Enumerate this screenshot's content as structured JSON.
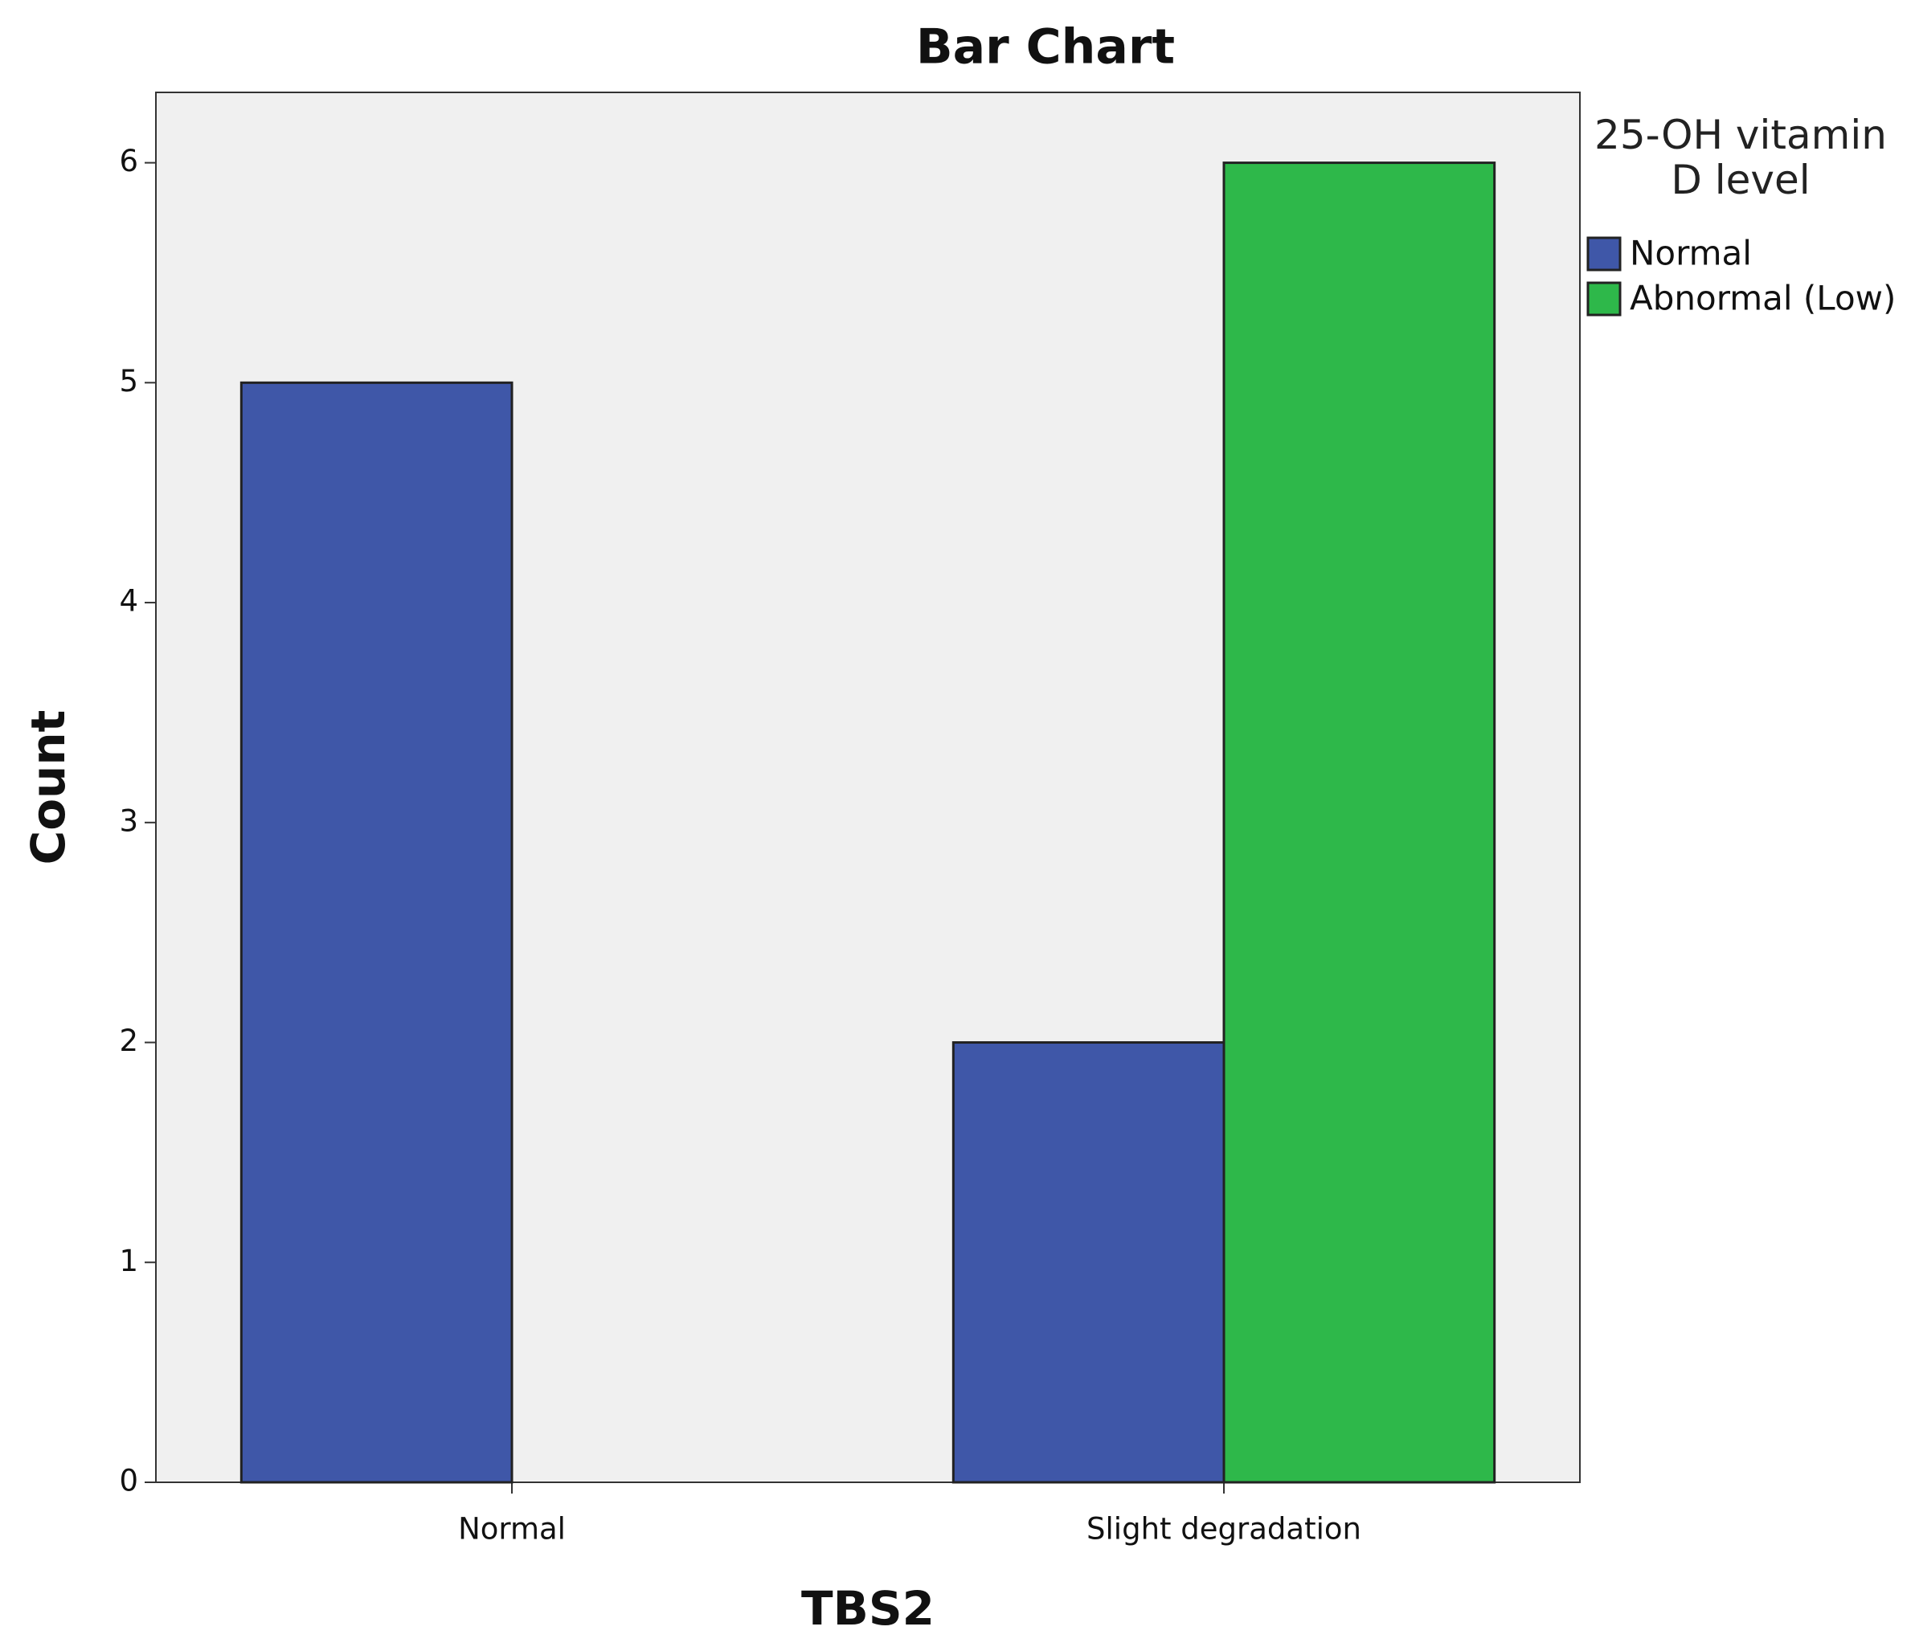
{
  "chart_data": {
    "type": "grouped-bar",
    "title": "Bar Chart",
    "x_label": "TBS2",
    "y_label": "Count",
    "categories": [
      "Normal",
      "Slight degradation"
    ],
    "legend_title": "25-OH vitamin D level",
    "series": [
      {
        "name": "Normal",
        "color": "#3f57a8",
        "values": [
          5,
          2
        ]
      },
      {
        "name": "Abnormal (Low)",
        "color": "#2eb84a",
        "values": [
          null,
          6
        ]
      }
    ],
    "ylim": [
      0,
      6.32
    ],
    "yticks": [
      0,
      1,
      2,
      3,
      4,
      5,
      6
    ],
    "legend": "right"
  }
}
